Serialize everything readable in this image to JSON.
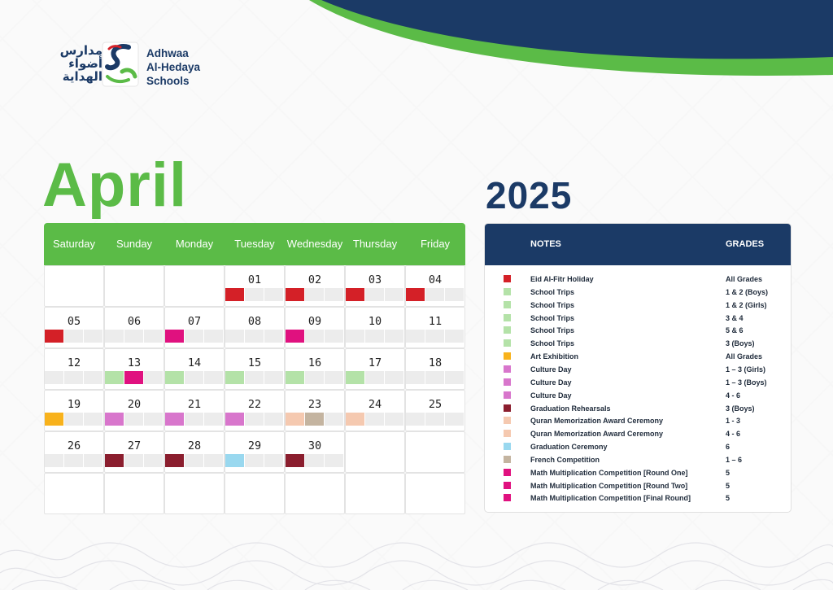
{
  "brand": {
    "arabic_name": "مدارس أضواء الهداية",
    "english_name": [
      "Adhwaa",
      "Al-Hedaya",
      "Schools"
    ],
    "logo_icon": "school-logo-icon"
  },
  "month": "April",
  "year": "2025",
  "colors": {
    "green": "#5bbb47",
    "navy": "#1b3a66"
  },
  "calendar": {
    "days": [
      "Saturday",
      "Sunday",
      "Monday",
      "Tuesday",
      "Wednesday",
      "Thursday",
      "Friday"
    ],
    "weeks": [
      [
        "",
        "",
        "",
        "01",
        "02",
        "03",
        "04"
      ],
      [
        "05",
        "06",
        "07",
        "08",
        "09",
        "10",
        "11"
      ],
      [
        "12",
        "13",
        "14",
        "15",
        "16",
        "17",
        "18"
      ],
      [
        "19",
        "20",
        "21",
        "22",
        "23",
        "24",
        "25"
      ],
      [
        "26",
        "27",
        "28",
        "29",
        "30",
        "",
        ""
      ],
      [
        "",
        "",
        "",
        "",
        "",
        "",
        ""
      ]
    ],
    "markers": [
      {
        "week": 0,
        "day": 3,
        "slot": 0,
        "color": "#d42027"
      },
      {
        "week": 0,
        "day": 4,
        "slot": 0,
        "color": "#d42027"
      },
      {
        "week": 0,
        "day": 5,
        "slot": 0,
        "color": "#d42027"
      },
      {
        "week": 0,
        "day": 6,
        "slot": 0,
        "color": "#d42027"
      },
      {
        "week": 1,
        "day": 0,
        "slot": 0,
        "color": "#d42027"
      },
      {
        "week": 1,
        "day": 2,
        "slot": 0,
        "color": "#e0117f"
      },
      {
        "week": 1,
        "day": 4,
        "slot": 0,
        "color": "#e0117f"
      },
      {
        "week": 2,
        "day": 1,
        "slot": 0,
        "color": "#b4e2a8"
      },
      {
        "week": 2,
        "day": 1,
        "slot": 1,
        "color": "#e0117f"
      },
      {
        "week": 2,
        "day": 2,
        "slot": 0,
        "color": "#b4e2a8"
      },
      {
        "week": 2,
        "day": 3,
        "slot": 0,
        "color": "#b4e2a8"
      },
      {
        "week": 2,
        "day": 4,
        "slot": 0,
        "color": "#b4e2a8"
      },
      {
        "week": 2,
        "day": 5,
        "slot": 0,
        "color": "#b4e2a8"
      },
      {
        "week": 3,
        "day": 0,
        "slot": 0,
        "color": "#f8b21c"
      },
      {
        "week": 3,
        "day": 1,
        "slot": 0,
        "color": "#d876cc"
      },
      {
        "week": 3,
        "day": 2,
        "slot": 0,
        "color": "#d876cc"
      },
      {
        "week": 3,
        "day": 3,
        "slot": 0,
        "color": "#d876cc"
      },
      {
        "week": 3,
        "day": 4,
        "slot": 0,
        "color": "#f5c9b0"
      },
      {
        "week": 3,
        "day": 4,
        "slot": 1,
        "color": "#c4b4a0"
      },
      {
        "week": 3,
        "day": 5,
        "slot": 0,
        "color": "#f5c9b0"
      },
      {
        "week": 4,
        "day": 1,
        "slot": 0,
        "color": "#8b1e2e"
      },
      {
        "week": 4,
        "day": 2,
        "slot": 0,
        "color": "#8b1e2e"
      },
      {
        "week": 4,
        "day": 3,
        "slot": 0,
        "color": "#99d8ef"
      },
      {
        "week": 4,
        "day": 4,
        "slot": 0,
        "color": "#8b1e2e"
      }
    ]
  },
  "notes": {
    "header_notes": "NOTES",
    "header_grades": "GRADES",
    "items": [
      {
        "color": "#d42027",
        "label": "Eid Al-Fitr Holiday",
        "grades": "All Grades"
      },
      {
        "color": "#b4e2a8",
        "label": "School Trips",
        "grades": "1 & 2 (Boys)"
      },
      {
        "color": "#b4e2a8",
        "label": "School Trips",
        "grades": "1 & 2 (Girls)"
      },
      {
        "color": "#b4e2a8",
        "label": "School Trips",
        "grades": "3 & 4"
      },
      {
        "color": "#b4e2a8",
        "label": "School Trips",
        "grades": "5 & 6"
      },
      {
        "color": "#b4e2a8",
        "label": "School Trips",
        "grades": "3 (Boys)"
      },
      {
        "color": "#f8b21c",
        "label": "Art Exhibition",
        "grades": "All Grades"
      },
      {
        "color": "#d876cc",
        "label": "Culture Day",
        "grades": "1 – 3 (Girls)"
      },
      {
        "color": "#d876cc",
        "label": "Culture Day",
        "grades": "1 – 3 (Boys)"
      },
      {
        "color": "#d876cc",
        "label": "Culture Day",
        "grades": "4 - 6"
      },
      {
        "color": "#8b1e2e",
        "label": "Graduation Rehearsals",
        "grades": "3 (Boys)"
      },
      {
        "color": "#f5c9b0",
        "label": "Quran Memorization Award Ceremony",
        "grades": "1 - 3"
      },
      {
        "color": "#f5c9b0",
        "label": "Quran Memorization Award Ceremony",
        "grades": "4 - 6"
      },
      {
        "color": "#99d8ef",
        "label": "Graduation Ceremony",
        "grades": "6"
      },
      {
        "color": "#c4b4a0",
        "label": "French Competition",
        "grades": "1 – 6"
      },
      {
        "color": "#e0117f",
        "label": "Math Multiplication Competition [Round One]",
        "grades": "5"
      },
      {
        "color": "#e0117f",
        "label": "Math Multiplication Competition [Round Two]",
        "grades": "5"
      },
      {
        "color": "#e0117f",
        "label": "Math Multiplication Competition [Final Round]",
        "grades": "5"
      }
    ]
  }
}
